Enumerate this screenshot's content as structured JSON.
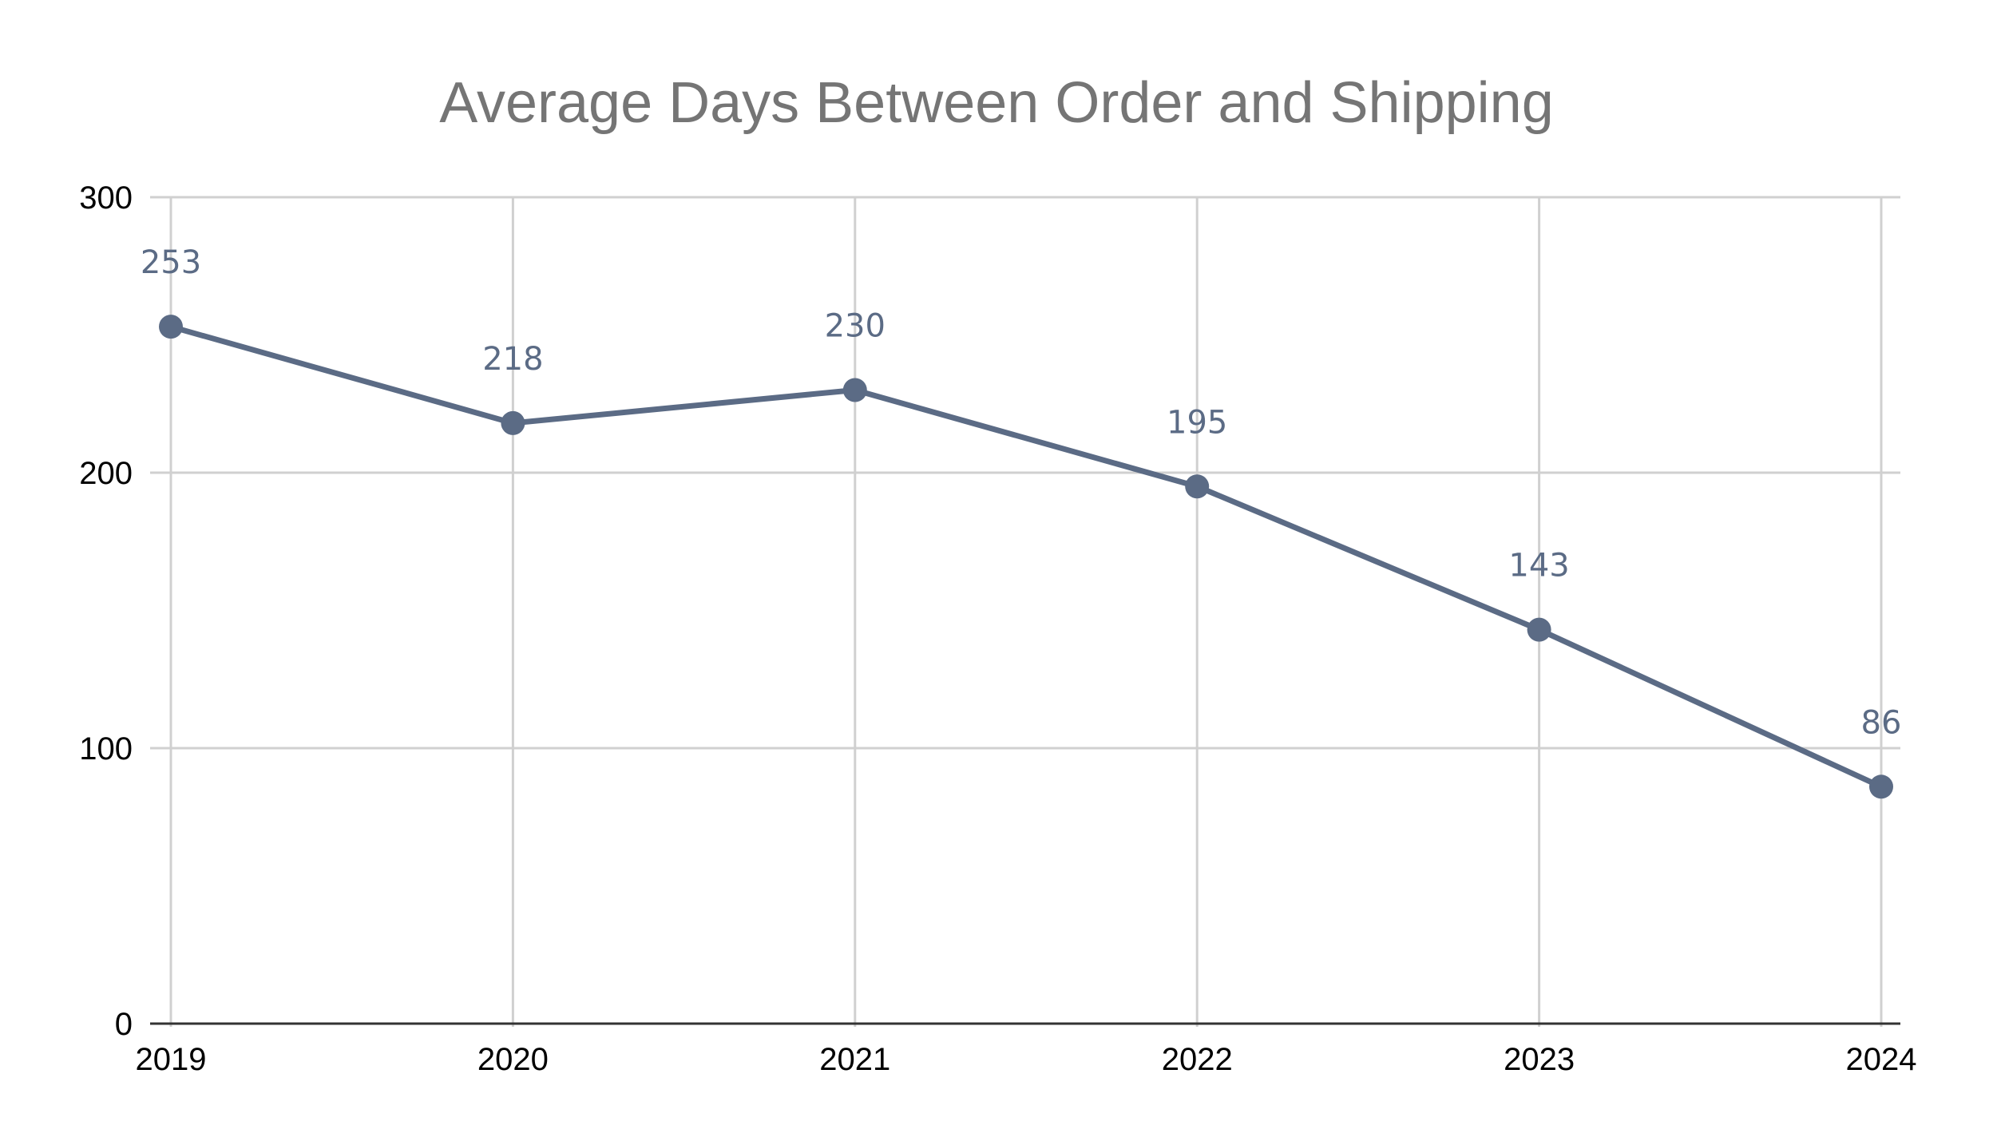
{
  "chart_data": {
    "type": "line",
    "title": "Average Days Between Order and Shipping",
    "xlabel": "",
    "ylabel": "",
    "categories": [
      "2019",
      "2020",
      "2021",
      "2022",
      "2023",
      "2024"
    ],
    "series": [
      {
        "values": [
          253,
          218,
          230,
          195,
          143,
          86
        ],
        "color": "#5b6b85"
      }
    ],
    "data_labels": [
      "253",
      "218",
      "230",
      "195",
      "143",
      "86"
    ],
    "y_ticks": [
      "0",
      "100",
      "200",
      "300"
    ],
    "ylim": [
      0,
      300
    ],
    "grid": true,
    "legend": "none",
    "colors": {
      "title": "#757575",
      "grid": "#d0d0d0",
      "axis": "#333333",
      "series": "#5b6b85",
      "label": "#5b6b85"
    }
  }
}
